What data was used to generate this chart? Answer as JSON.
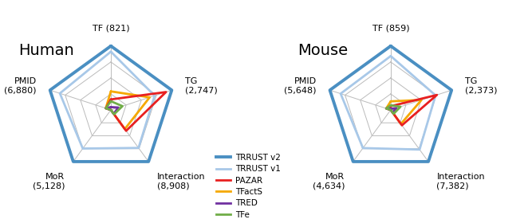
{
  "human": {
    "title": "Human",
    "max_values": [
      821,
      2747,
      8908,
      5128,
      6880
    ],
    "ax_labels": [
      "TF (821)",
      "TG\n(2,747)",
      "Interaction\n(8,908)",
      "MoR\n(5,128)",
      "PMID\n(6,880)"
    ],
    "databases": {
      "TRRUST v2": [
        1.0,
        1.0,
        1.0,
        1.0,
        1.0
      ],
      "TRRUST v1": [
        0.911,
        0.719,
        0.735,
        0.747,
        0.838
      ],
      "PAZAR": [
        0.164,
        0.906,
        0.405,
        0.0,
        0.084
      ],
      "TFactS": [
        0.29,
        0.637,
        0.37,
        0.0,
        0.084
      ],
      "TRED": [
        0.044,
        0.121,
        0.075,
        0.0,
        0.084
      ],
      "TFe": [
        0.136,
        0.19,
        0.085,
        0.0,
        0.084
      ]
    }
  },
  "mouse": {
    "title": "Mouse",
    "max_values": [
      859,
      2373,
      7382,
      4634,
      5648
    ],
    "ax_labels": [
      "TF (859)",
      "TG\n(2,373)",
      "Interaction\n(7,382)",
      "MoR\n(4,634)",
      "PMID\n(5,648)"
    ],
    "databases": {
      "TRRUST v2": [
        1.0,
        1.0,
        1.0,
        1.0,
        1.0
      ],
      "TRRUST v1": [
        0.843,
        0.736,
        0.767,
        0.738,
        0.823
      ],
      "PAZAR": [
        0.058,
        0.759,
        0.298,
        0.0,
        0.074
      ],
      "TFactS": [
        0.134,
        0.506,
        0.271,
        0.0,
        0.074
      ],
      "TRED": [
        0.017,
        0.093,
        0.049,
        0.0,
        0.074
      ],
      "TFe": [
        0.072,
        0.16,
        0.076,
        0.0,
        0.074
      ]
    }
  },
  "colors": {
    "TRRUST v2": "#4A8FC2",
    "TRRUST v1": "#A8C8E8",
    "PAZAR": "#E82020",
    "TFactS": "#F5A800",
    "TRED": "#7030A0",
    "TFe": "#70AD47"
  },
  "linewidths": {
    "TRRUST v2": 2.8,
    "TRRUST v1": 2.0,
    "PAZAR": 2.0,
    "TFactS": 2.0,
    "TRED": 2.0,
    "TFe": 2.0
  },
  "grid_levels": [
    0.25,
    0.5,
    0.75,
    1.0
  ],
  "grid_color": "#BBBBBB",
  "background_color": "#FFFFFF",
  "legend_order": [
    "TRRUST v2",
    "TRRUST v1",
    "PAZAR",
    "TFactS",
    "TRED",
    "TFe"
  ]
}
